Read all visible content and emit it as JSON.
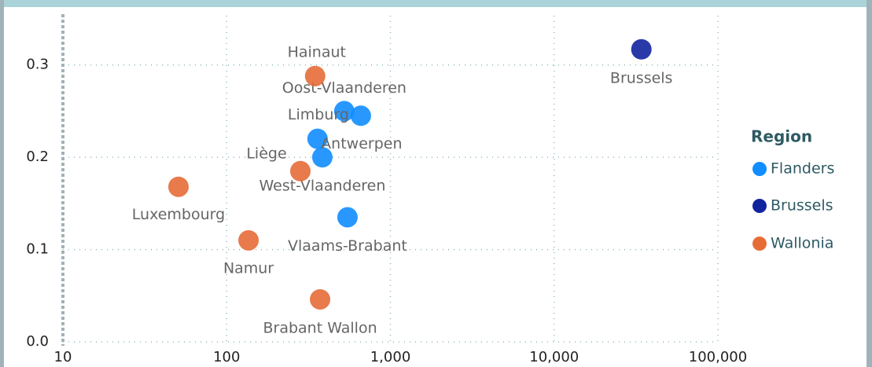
{
  "chart_data": {
    "type": "scatter",
    "x_log": true,
    "grid": true,
    "xlim": [
      10,
      100000
    ],
    "ylim": [
      0,
      0.35
    ],
    "xticks": [
      10,
      100,
      {
        "value": 1000,
        "label": "1,000"
      },
      {
        "value": 10000,
        "label": "10,000"
      },
      {
        "value": 100000,
        "label": "100,000"
      }
    ],
    "yticks": [
      {
        "value": 0,
        "label": "0.0"
      },
      0.1,
      0.2,
      0.3
    ],
    "legend_title": "Region",
    "legend_position": "right",
    "series": [
      {
        "name": "Flanders",
        "color": "#118dff",
        "labels": [
          "Oost-Vlaanderen",
          "Limburg",
          "Antwerpen",
          "West-Vlaanderen",
          "Vlaams-Brabant"
        ],
        "x": [
          523,
          660,
          359,
          384,
          547
        ],
        "values": [
          0.25,
          0.245,
          0.22,
          0.2,
          0.135
        ]
      },
      {
        "name": "Brussels",
        "color": "#12239e",
        "labels": [
          "Brussels"
        ],
        "x": [
          34100
        ],
        "values": [
          0.317
        ]
      },
      {
        "name": "Wallonia",
        "color": "#e66c37",
        "labels": [
          "Hainaut",
          "Liège",
          "Luxembourg",
          "Namur",
          "Brabant Wallon"
        ],
        "x": [
          347,
          282,
          50.8,
          136,
          372
        ],
        "values": [
          0.288,
          0.185,
          0.168,
          0.11,
          0.046
        ]
      }
    ]
  }
}
